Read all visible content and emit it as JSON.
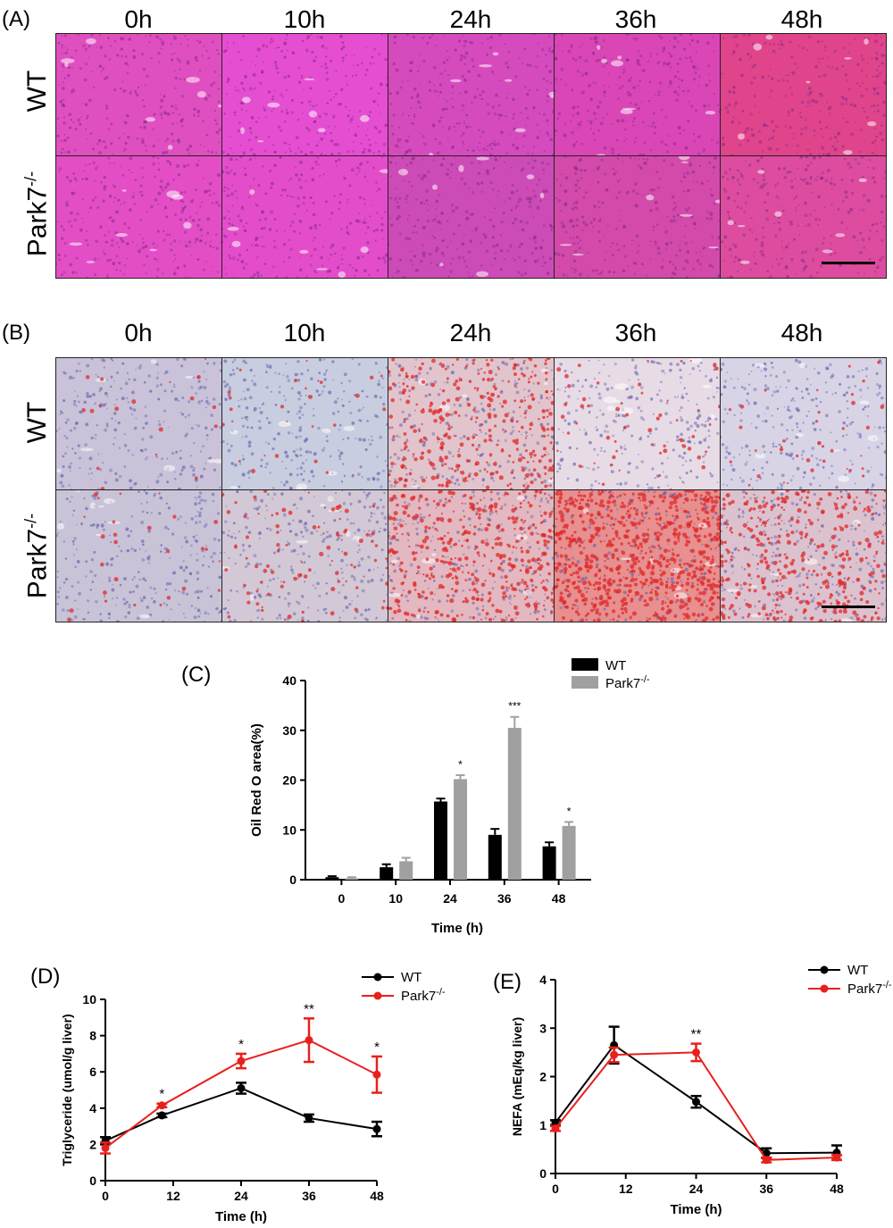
{
  "panels": {
    "A": {
      "letter": "(A)",
      "columns": [
        "0h",
        "10h",
        "24h",
        "36h",
        "48h"
      ],
      "rows": [
        {
          "main": "WT",
          "sup": ""
        },
        {
          "main": "Park7",
          "sup": "-/-"
        }
      ],
      "tiles": [
        [
          "#e04fc0",
          "#e64ed1",
          "#d54bbd",
          "#da46b6",
          "#e0448a"
        ],
        [
          "#e34ec6",
          "#e44dca",
          "#cd4bb6",
          "#d34aaa",
          "#dd4c9e"
        ]
      ]
    },
    "B": {
      "letter": "(B)",
      "columns": [
        "0h",
        "10h",
        "24h",
        "36h",
        "48h"
      ],
      "rows": [
        {
          "main": "WT",
          "sup": ""
        },
        {
          "main": "Park7",
          "sup": "-/-"
        }
      ],
      "tiles": [
        [
          "#c9c2d8",
          "#c8cde0",
          "#e2c4cc",
          "#e7dbe6",
          "#d8d4e6"
        ],
        [
          "#c9c3d8",
          "#d3c8d6",
          "#e3b8c0",
          "#e88f8f",
          "#dcc2cf"
        ]
      ],
      "red_density": [
        [
          0.02,
          0.03,
          0.35,
          0.06,
          0.04
        ],
        [
          0.03,
          0.1,
          0.45,
          0.8,
          0.4
        ]
      ]
    },
    "C": {
      "letter": "(C)"
    },
    "D": {
      "letter": "(D)"
    },
    "E": {
      "letter": "(E)"
    }
  },
  "chart_data": [
    {
      "id": "C",
      "type": "bar",
      "categories": [
        "0",
        "10",
        "24",
        "36",
        "48"
      ],
      "xlabel": "Time (h)",
      "ylabel": "Oil Red O area(%)",
      "ylim": [
        0,
        40
      ],
      "yticks": [
        0,
        10,
        20,
        30,
        40
      ],
      "legend": {
        "position": "top-right"
      },
      "series": [
        {
          "name": "WT",
          "color": "#000000",
          "values": [
            0.5,
            2.5,
            15.7,
            9.0,
            6.7
          ],
          "errors": [
            0.2,
            0.6,
            0.6,
            1.2,
            0.8
          ]
        },
        {
          "name": "Park7-/-",
          "name_main": "Park7",
          "name_sup": "-/-",
          "color": "#a0a0a0",
          "values": [
            0.3,
            3.7,
            20.2,
            30.5,
            10.8
          ],
          "errors": [
            0.2,
            0.7,
            0.8,
            2.2,
            0.8
          ]
        }
      ],
      "annotations": [
        {
          "category": "24",
          "text": "*"
        },
        {
          "category": "36",
          "text": "***"
        },
        {
          "category": "48",
          "text": "*"
        }
      ]
    },
    {
      "id": "D",
      "type": "line",
      "x": [
        0,
        10,
        24,
        36,
        48
      ],
      "xticks": [
        0,
        12,
        24,
        36,
        48
      ],
      "xlabel": "Time (h)",
      "ylabel": "Triglyceride (umol/g liver)",
      "ylim": [
        0,
        10
      ],
      "yticks": [
        0,
        2,
        4,
        6,
        8,
        10
      ],
      "xlim": [
        0,
        48
      ],
      "legend": {
        "position": "top-right"
      },
      "series": [
        {
          "name": "WT",
          "color": "#000000",
          "values": [
            2.2,
            3.6,
            5.1,
            3.45,
            2.85
          ],
          "errors": [
            0.2,
            0.1,
            0.3,
            0.2,
            0.4
          ]
        },
        {
          "name": "Park7-/-",
          "name_main": "Park7",
          "name_sup": "-/-",
          "color": "#e8201c",
          "values": [
            1.8,
            4.15,
            6.6,
            7.75,
            5.85
          ],
          "errors": [
            0.3,
            0.1,
            0.4,
            1.2,
            1.0
          ]
        }
      ],
      "annotations": [
        {
          "x": 10,
          "text": "*"
        },
        {
          "x": 24,
          "text": "*"
        },
        {
          "x": 36,
          "text": "**"
        },
        {
          "x": 48,
          "text": "*"
        }
      ]
    },
    {
      "id": "E",
      "type": "line",
      "x": [
        0,
        10,
        24,
        36,
        48
      ],
      "xticks": [
        0,
        12,
        24,
        36,
        48
      ],
      "xlabel": "Time (h)",
      "ylabel": "NEFA (mEq/kg liver)",
      "ylim": [
        0,
        4
      ],
      "yticks": [
        0,
        1,
        2,
        3,
        4
      ],
      "xlim": [
        0,
        48
      ],
      "legend": {
        "position": "top-right"
      },
      "series": [
        {
          "name": "WT",
          "color": "#000000",
          "values": [
            1.05,
            2.65,
            1.48,
            0.42,
            0.43
          ],
          "errors": [
            0.05,
            0.38,
            0.12,
            0.1,
            0.15
          ]
        },
        {
          "name": "Park7-/-",
          "name_main": "Park7",
          "name_sup": "-/-",
          "color": "#e8201c",
          "values": [
            0.93,
            2.45,
            2.5,
            0.28,
            0.33
          ],
          "errors": [
            0.05,
            0.15,
            0.18,
            0.05,
            0.05
          ]
        }
      ],
      "annotations": [
        {
          "x": 24,
          "text": "**"
        }
      ]
    }
  ]
}
